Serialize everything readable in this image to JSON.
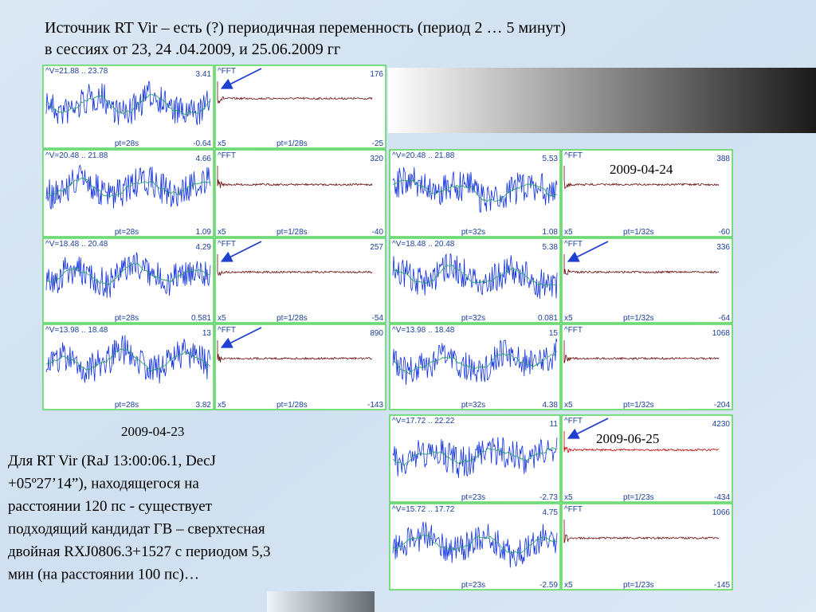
{
  "title": {
    "line1": "Источник RT Vir – есть (?) периодичная переменность (период 2 … 5 минут)",
    "line2": "в сессиях от 23, 24 .04.2009, и 25.06.2009 гг"
  },
  "panels": [
    {
      "range": "^V=21.88 .. 23.78",
      "max": "3.41",
      "pt": "pt=28s",
      "min": "-0.64",
      "fft_label": "^FFT",
      "fft_max": "176",
      "fft_scale": "x5",
      "fft_pt": "pt=1/28s",
      "fft_min": "-25"
    },
    {
      "range": "^V=20.48 .. 21.88",
      "max": "4.66",
      "pt": "pt=28s",
      "min": "1.09",
      "fft_label": "^FFT",
      "fft_max": "320",
      "fft_scale": "x5",
      "fft_pt": "pt=1/28s",
      "fft_min": "-40"
    },
    {
      "range": "^V=18.48 .. 20.48",
      "max": "4.29",
      "pt": "pt=28s",
      "min": "0.581",
      "fft_label": "^FFT",
      "fft_max": "257",
      "fft_scale": "x5",
      "fft_pt": "pt=1/28s",
      "fft_min": "-54"
    },
    {
      "range": "^V=13.98 .. 18.48",
      "max": "13",
      "pt": "pt=28s",
      "min": "3.82",
      "fft_label": "^FFT",
      "fft_max": "890",
      "fft_scale": "x5",
      "fft_pt": "pt=1/28s",
      "fft_min": "-143"
    },
    {
      "range": "^V=20.48 .. 21.88",
      "max": "5.53",
      "pt": "pt=32s",
      "min": "1.08",
      "fft_label": "^FFT",
      "fft_max": "388",
      "fft_scale": "x5",
      "fft_pt": "pt=1/32s",
      "fft_min": "-60"
    },
    {
      "range": "^V=18.48 .. 20.48",
      "max": "5.38",
      "pt": "pt=32s",
      "min": "0.081",
      "fft_label": "^FFT",
      "fft_max": "336",
      "fft_scale": "x5",
      "fft_pt": "pt=1/32s",
      "fft_min": "-64"
    },
    {
      "range": "^V=13.98 .. 18.48",
      "max": "15",
      "pt": "pt=32s",
      "min": "4.38",
      "fft_label": "^FFT",
      "fft_max": "1068",
      "fft_scale": "x5",
      "fft_pt": "pt=1/32s",
      "fft_min": "-204"
    },
    {
      "range": "^V=17.72 .. 22.22",
      "max": "11",
      "pt": "pt=23s",
      "min": "-2.73",
      "fft_label": "^FFT",
      "fft_max": "4230",
      "fft_scale": "x5",
      "fft_pt": "pt=1/23s",
      "fft_min": "-434"
    },
    {
      "range": "^V=15.72 .. 17.72",
      "max": "4.75",
      "pt": "pt=23s",
      "min": "-2.59",
      "fft_label": "^FFT",
      "fft_max": "1066",
      "fft_scale": "x5",
      "fft_pt": "pt=1/23s",
      "fft_min": "-145"
    }
  ],
  "dates": [
    "2009-04-23",
    "2009-04-24",
    "2009-06-25"
  ],
  "body": [
    "Для RT Vir (RaJ 13:00:06.1, DecJ",
    "+05º27’14”), находящегося на",
    "расстоянии 120 пс - существует",
    "подходящий кандидат ГВ – сверхтесная",
    "двойная RXJ0806.3+1527 с периодом 5,3",
    "мин (на расстоянии 100 пс)…"
  ]
}
